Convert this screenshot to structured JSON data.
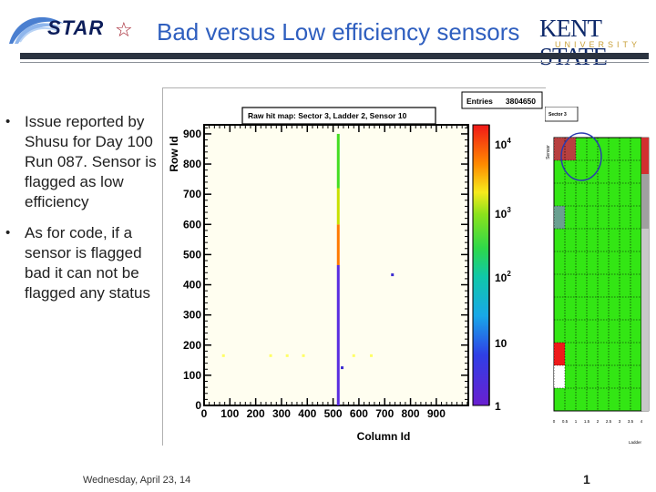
{
  "header": {
    "logo_text": "STAR",
    "title": "Bad versus Low efficiency sensors",
    "university_name": "KENT STATE",
    "university_sub": "UNIVERSITY"
  },
  "bullets": [
    "Issue reported by Shusu for Day 100 Run 087. Sensor is flagged as low efficiency",
    "As for code, if a sensor is flagged bad it can not be flagged any status"
  ],
  "main_plot": {
    "title": "Raw hit map: Sector 3, Ladder 2, Sensor 10",
    "stats_label": "Entries",
    "stats_value": "3804650",
    "xlabel": "Column Id",
    "ylabel": "Row Id",
    "colorbar_ticks": [
      "10",
      "10",
      "10",
      "10",
      "1"
    ],
    "colorbar_exponents": [
      "4",
      "3",
      "2",
      "",
      ""
    ]
  },
  "side_plot": {
    "title": "Sector 3",
    "ylabel": "Sensor",
    "xlabel": "Ladder",
    "x_ticks": [
      "0",
      "0.5",
      "1",
      "1.5",
      "2",
      "2.5",
      "3",
      "3.5",
      "4"
    ]
  },
  "footer": {
    "date": "Wednesday, April 23, 14",
    "page": "1"
  },
  "chart_data": {
    "type": "heatmap",
    "title": "Raw hit map: Sector 3, Ladder 2, Sensor 10",
    "xlabel": "Column Id",
    "ylabel": "Row Id",
    "xlim": [
      0,
      1024
    ],
    "ylim": [
      0,
      930
    ],
    "x_ticks": [
      0,
      100,
      200,
      300,
      400,
      500,
      600,
      700,
      800,
      900
    ],
    "y_ticks": [
      0,
      100,
      200,
      300,
      400,
      500,
      600,
      700,
      800,
      900
    ],
    "color_scale": "log",
    "z_range": [
      1,
      20000
    ],
    "entries": 3804650,
    "column_segments": [
      {
        "x": 520,
        "y0": 0,
        "y1": 465,
        "color": "#5a2de0"
      },
      {
        "x": 520,
        "y0": 465,
        "y1": 600,
        "color": "#ff7a00"
      },
      {
        "x": 520,
        "y0": 600,
        "y1": 720,
        "color": "#c8e000"
      },
      {
        "x": 520,
        "y0": 720,
        "y1": 900,
        "color": "#44dd22"
      }
    ],
    "points": [
      {
        "x": 75,
        "y": 165,
        "color": "#ffff66"
      },
      {
        "x": 258,
        "y": 165,
        "color": "#ffff66"
      },
      {
        "x": 322,
        "y": 165,
        "color": "#ffff66"
      },
      {
        "x": 385,
        "y": 165,
        "color": "#ffff66"
      },
      {
        "x": 580,
        "y": 165,
        "color": "#ffff66"
      },
      {
        "x": 648,
        "y": 165,
        "color": "#ffff66"
      },
      {
        "x": 535,
        "y": 125,
        "color": "#3a2ad0"
      },
      {
        "x": 730,
        "y": 433,
        "color": "#3a2ad0"
      }
    ]
  }
}
